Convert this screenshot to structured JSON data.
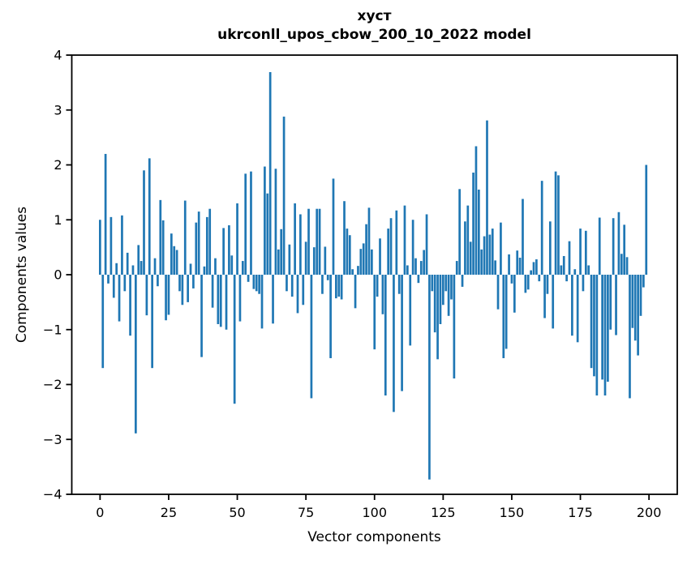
{
  "chart_data": {
    "type": "bar",
    "title": "хуст",
    "subtitle": "ukrconll_upos_cbow_200_10_2022 model",
    "xlabel": "Vector components",
    "ylabel": "Components values",
    "xlim": [
      -10.3,
      210.3
    ],
    "ylim": [
      -4,
      4
    ],
    "xticks": [
      0,
      25,
      50,
      75,
      100,
      125,
      150,
      175,
      200
    ],
    "yticks": [
      -4,
      -3,
      -2,
      -1,
      0,
      1,
      2,
      3,
      4
    ],
    "grid": false,
    "legend": null,
    "bar_color": "#1f77b4",
    "values": [
      1.0,
      -1.7,
      2.2,
      -0.16,
      1.05,
      -0.42,
      0.21,
      -0.85,
      1.08,
      -0.3,
      0.4,
      -1.11,
      0.17,
      -2.89,
      0.54,
      0.25,
      1.9,
      -0.74,
      2.12,
      -1.7,
      0.3,
      -0.21,
      1.36,
      0.99,
      -0.83,
      -0.73,
      0.75,
      0.52,
      0.45,
      -0.3,
      -0.55,
      1.35,
      -0.5,
      0.2,
      -0.25,
      0.95,
      1.15,
      -1.5,
      0.15,
      1.05,
      1.2,
      -0.6,
      0.3,
      -0.9,
      -0.95,
      0.85,
      -1.0,
      0.9,
      0.35,
      -2.35,
      1.3,
      -0.85,
      0.25,
      1.84,
      -0.13,
      1.88,
      -0.26,
      -0.3,
      -0.35,
      -0.98,
      1.97,
      1.48,
      3.69,
      -0.89,
      1.93,
      0.46,
      0.83,
      2.88,
      -0.3,
      0.55,
      -0.4,
      1.3,
      -0.7,
      1.1,
      -0.55,
      0.6,
      1.2,
      -2.25,
      0.5,
      1.2,
      1.2,
      -0.35,
      0.51,
      -0.1,
      -1.52,
      1.75,
      -0.43,
      -0.4,
      -0.45,
      1.34,
      0.84,
      0.72,
      0.1,
      -0.61,
      0.16,
      0.47,
      0.57,
      0.92,
      1.22,
      0.46,
      -1.36,
      -0.4,
      0.66,
      -0.72,
      -2.2,
      0.84,
      1.03,
      -2.5,
      1.17,
      -0.35,
      -2.12,
      1.26,
      0.17,
      -1.29,
      1.0,
      0.3,
      -0.15,
      0.25,
      0.45,
      1.1,
      -3.73,
      -0.3,
      -1.05,
      -1.54,
      -0.9,
      -0.55,
      -0.3,
      -0.75,
      -0.45,
      -1.89,
      0.25,
      1.56,
      -0.22,
      0.97,
      1.26,
      0.6,
      1.86,
      2.34,
      1.55,
      0.46,
      0.7,
      2.81,
      0.73,
      0.84,
      0.26,
      -0.63,
      0.95,
      -1.52,
      -1.35,
      0.37,
      -0.16,
      -0.69,
      0.44,
      0.31,
      1.38,
      -0.33,
      -0.27,
      0.08,
      0.23,
      0.28,
      -0.12,
      1.71,
      -0.79,
      -0.35,
      0.97,
      -0.98,
      1.88,
      1.81,
      0.17,
      0.34,
      -0.12,
      0.61,
      -1.11,
      0.1,
      -1.23,
      0.84,
      -0.3,
      0.8,
      0.17,
      -1.7,
      -1.85,
      -2.2,
      1.04,
      -1.91,
      -2.2,
      -1.95,
      -1.0,
      1.03,
      -1.1,
      1.14,
      0.38,
      0.91,
      0.32,
      -2.25,
      -0.97,
      -1.2,
      -1.47,
      -0.75,
      -0.23,
      2.0
    ]
  }
}
